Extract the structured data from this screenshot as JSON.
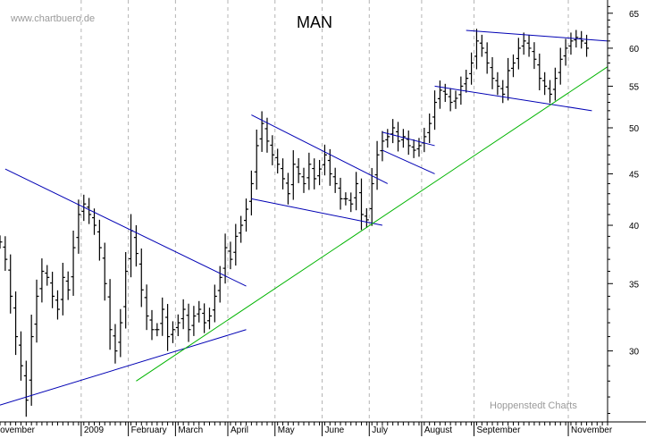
{
  "chart_data": {
    "type": "line",
    "style": "ohlc-bar",
    "title": "MAN",
    "watermark": "www.chartbuero.de",
    "footer": "Hoppenstedt Charts",
    "y_scale": "log",
    "ylim": [
      25.5,
      67
    ],
    "y_ticks": [
      30,
      35,
      40,
      45,
      50,
      55,
      60,
      65
    ],
    "x_labels": [
      "ovember",
      "2009",
      "February",
      "March",
      "April",
      "May",
      "June",
      "July",
      "August",
      "September",
      "November"
    ],
    "x_range": [
      0,
      116
    ],
    "x_month_positions": [
      -0.5,
      15.5,
      24.5,
      33.5,
      43.5,
      52.5,
      61.5,
      70.5,
      80.5,
      90.5,
      108.5
    ],
    "vertical_grid": true,
    "colors": {
      "bars": "#000000",
      "trend_lines": "#0000b4",
      "support_line": "#00b400",
      "grid": "#b4b4b4"
    },
    "series": [
      {
        "values": [
          38.5,
          37,
          34,
          31,
          29,
          26.8,
          31,
          34,
          36,
          35.5,
          34,
          33,
          35.5,
          34.5,
          38,
          41,
          42,
          41,
          40,
          38,
          35,
          31.5,
          30,
          32,
          36,
          39.5,
          37.5,
          34.5,
          32.5,
          31.5,
          31.5,
          33,
          31,
          31.5,
          32,
          33,
          31.5,
          32.5,
          33,
          32,
          32.5,
          34,
          35.5,
          38,
          37,
          39,
          40,
          41.5,
          44,
          48,
          50.5,
          48.5,
          47,
          46,
          44.5,
          43,
          46,
          45,
          44,
          46,
          44.5,
          45.5,
          47,
          45,
          44,
          42.5,
          42.5,
          42,
          44,
          41,
          40.5,
          44,
          47,
          48.5,
          49,
          50,
          48.5,
          49,
          48,
          47.5,
          48,
          49,
          50.5,
          53,
          54.5,
          54,
          53,
          53.5,
          55,
          56,
          58,
          61,
          60,
          58,
          56,
          55,
          54,
          57,
          58,
          60,
          61,
          60,
          58.5,
          56,
          55,
          54,
          56,
          58.5,
          60,
          61,
          61.5,
          61,
          60
        ]
      }
    ],
    "trend_lines": [
      {
        "from": [
          1,
          45.5
        ],
        "to": [
          47,
          34.8
        ]
      },
      {
        "from": [
          0,
          26.5
        ],
        "to": [
          47,
          31.5
        ]
      },
      {
        "from": [
          48,
          51.5
        ],
        "to": [
          74,
          44
        ]
      },
      {
        "from": [
          48,
          42.5
        ],
        "to": [
          73,
          40
        ]
      },
      {
        "from": [
          73,
          49.5
        ],
        "to": [
          83,
          48
        ]
      },
      {
        "from": [
          73,
          47.5
        ],
        "to": [
          83,
          45
        ]
      },
      {
        "from": [
          83,
          55
        ],
        "to": [
          113,
          52
        ]
      },
      {
        "from": [
          89,
          62.5
        ],
        "to": [
          116,
          61
        ]
      }
    ],
    "support_line": {
      "from": [
        26,
        28
      ],
      "to": [
        116,
        57.5
      ]
    }
  }
}
